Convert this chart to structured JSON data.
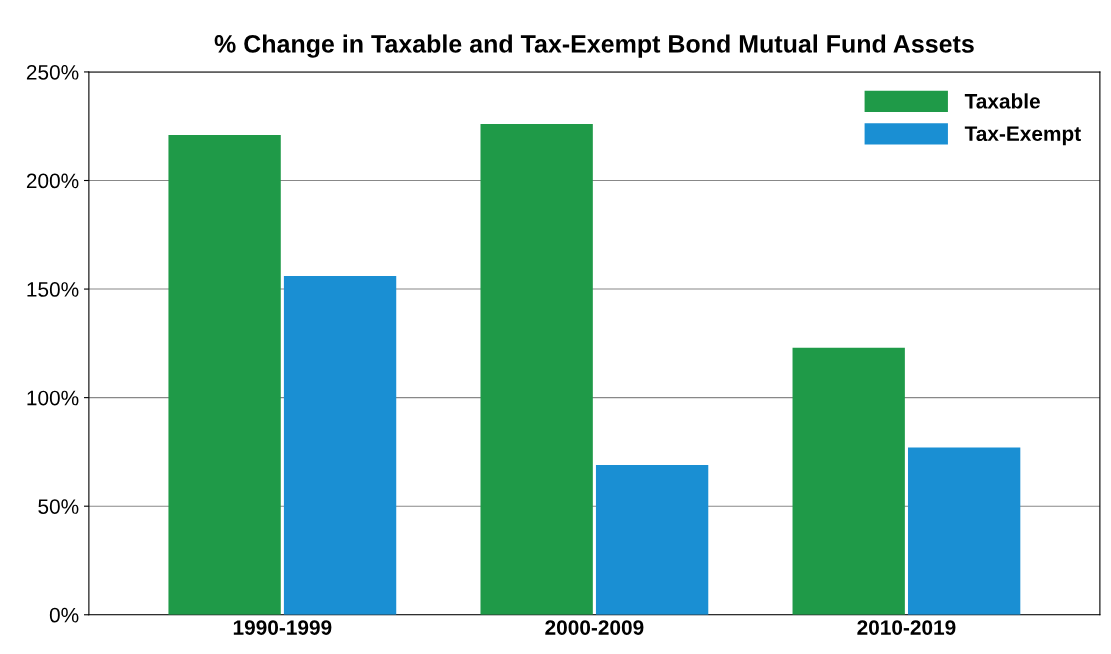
{
  "chart_data": {
    "type": "bar",
    "title": "% Change in Taxable and Tax-Exempt Bond Mutual Fund Assets",
    "categories": [
      "1990-1999",
      "2000-2009",
      "2010-2019"
    ],
    "series": [
      {
        "name": "Taxable",
        "color": "#1f9a48",
        "values": [
          221,
          226,
          123
        ]
      },
      {
        "name": "Tax-Exempt",
        "color": "#1a8fd3",
        "values": [
          156,
          69,
          77
        ]
      }
    ],
    "ylim": [
      0,
      250
    ],
    "yticks": [
      {
        "value": 0,
        "label": "0%"
      },
      {
        "value": 50,
        "label": "50%"
      },
      {
        "value": 100,
        "label": "100%"
      },
      {
        "value": 150,
        "label": "150%"
      },
      {
        "value": 200,
        "label": "200%"
      },
      {
        "value": 250,
        "label": "250%"
      }
    ],
    "grid": "y",
    "legend": "top right"
  }
}
